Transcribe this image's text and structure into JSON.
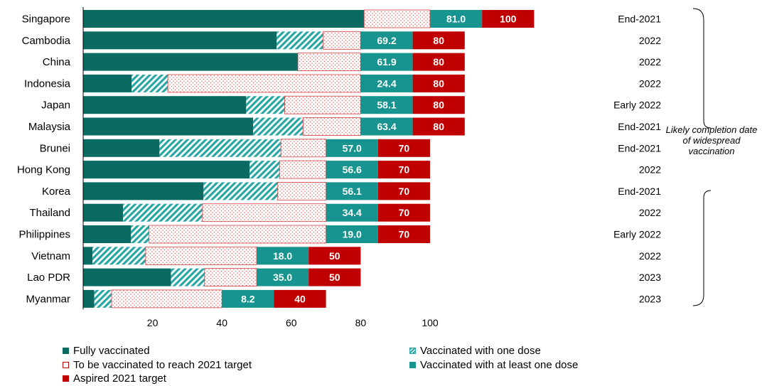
{
  "chart_data": {
    "type": "bar",
    "orientation": "horizontal",
    "stacked": true,
    "categories": [
      "Singapore",
      "Cambodia",
      "China",
      "Indonesia",
      "Japan",
      "Malaysia",
      "Brunei",
      "Hong Kong",
      "Korea",
      "Thailand",
      "Philippines",
      "Vietnam",
      "Lao PDR",
      "Myanmar"
    ],
    "series": [
      {
        "name": "Fully vaccinated",
        "color": "#0b6b63",
        "values": [
          81.0,
          55.8,
          61.9,
          14.0,
          47.0,
          49.0,
          22.0,
          48.0,
          34.7,
          11.5,
          13.8,
          2.7,
          25.3,
          3.2
        ]
      },
      {
        "name": "Vaccinated with one dose",
        "color": "#2aa7a4",
        "pattern": "hatch",
        "values": [
          0,
          13.4,
          0,
          10.4,
          11.1,
          14.4,
          35.0,
          8.6,
          21.4,
          22.9,
          5.2,
          15.3,
          9.7,
          5.0
        ]
      },
      {
        "name": "To be vaccinated to reach 2021 target",
        "color": "#f2a1a1",
        "pattern": "dots",
        "values": [
          19.0,
          10.8,
          18.1,
          55.6,
          21.9,
          16.6,
          13.0,
          13.4,
          13.9,
          35.6,
          51.0,
          32.0,
          15.0,
          31.8
        ]
      }
    ],
    "one_dose_values": [
      81.0,
      69.2,
      61.9,
      24.4,
      58.1,
      63.4,
      57.0,
      56.6,
      56.1,
      34.4,
      19.0,
      18.0,
      35.0,
      8.2
    ],
    "one_dose_labels": [
      "81.0",
      "69.2",
      "61.9",
      "24.4",
      "58.1",
      "63.4",
      "57.0",
      "56.6",
      "56.1",
      "34.4",
      "19.0",
      "18.0",
      "35.0",
      "8.2"
    ],
    "one_dose_color": "#17948f",
    "targets": [
      100,
      80,
      80,
      80,
      80,
      80,
      70,
      70,
      70,
      70,
      70,
      50,
      50,
      40
    ],
    "target_color": "#c00000",
    "completion_dates": [
      "End-2021",
      "2022",
      "2022",
      "2022",
      "Early 2022",
      "End-2021",
      "End-2021",
      "2022",
      "End-2021",
      "2022",
      "Early 2022",
      "2022",
      "2023",
      "2023"
    ],
    "x_ticks": [
      20,
      40,
      60,
      80,
      100
    ],
    "x_tick_labels": [
      "20",
      "40",
      "60",
      "80",
      "100"
    ],
    "xlim": [
      0,
      120
    ],
    "annotation": "Likely completion date of widespread vaccination",
    "legend": [
      {
        "label": "Fully vaccinated",
        "color": "#0b6b63",
        "pattern": "solid"
      },
      {
        "label": "Vaccinated with one dose",
        "color": "#2aa7a4",
        "pattern": "hatch"
      },
      {
        "label": "To be vaccinated to reach 2021 target",
        "color": "#c00000",
        "pattern": "dots"
      },
      {
        "label": "Vaccinated with at least one dose",
        "color": "#17948f",
        "pattern": "solid"
      },
      {
        "label": "Aspired 2021 target",
        "color": "#c00000",
        "pattern": "solid"
      }
    ]
  }
}
